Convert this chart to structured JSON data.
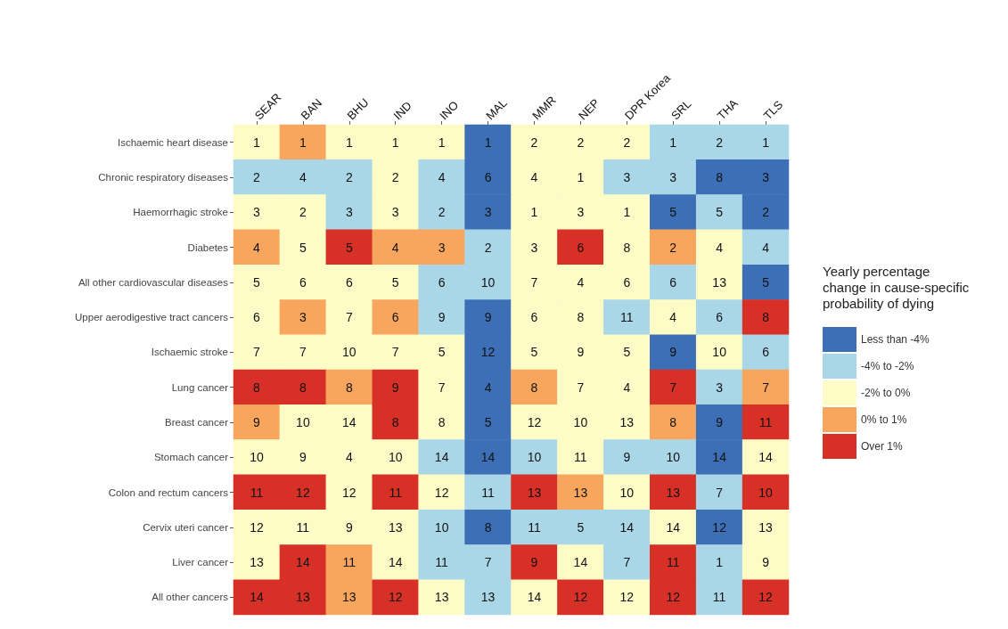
{
  "chart_data": {
    "type": "heatmap",
    "legend_title": "Yearly percentage\nchange in cause-specific\nprobability of dying",
    "legend": "right",
    "categories": [
      "SEAR",
      "BAN",
      "BHU",
      "IND",
      "INO",
      "MAL",
      "MMR",
      "NEP",
      "DPR Korea",
      "SRL",
      "THA",
      "TLS"
    ],
    "y_categories": [
      "Ischaemic heart disease",
      "Chronic respiratory diseases",
      "Haemorrhagic stroke",
      "Diabetes",
      "All other cardiovascular diseases",
      "Upper aerodigestive tract cancers",
      "Ischaemic stroke",
      "Lung cancer",
      "Breast cancer",
      "Stomach cancer",
      "Colon and rectum cancers",
      "Cervix uteri cancer",
      "Liver cancer",
      "All other cancers"
    ],
    "cells": [
      [
        1,
        1,
        1,
        1,
        1,
        1,
        2,
        2,
        2,
        1,
        2,
        1
      ],
      [
        2,
        4,
        2,
        2,
        4,
        6,
        4,
        1,
        3,
        3,
        8,
        3
      ],
      [
        3,
        2,
        3,
        3,
        2,
        3,
        1,
        3,
        1,
        5,
        5,
        2
      ],
      [
        4,
        5,
        5,
        4,
        3,
        2,
        3,
        6,
        8,
        2,
        4,
        4
      ],
      [
        5,
        6,
        6,
        5,
        6,
        10,
        7,
        4,
        6,
        6,
        13,
        5
      ],
      [
        6,
        3,
        7,
        6,
        9,
        9,
        6,
        8,
        11,
        4,
        6,
        8
      ],
      [
        7,
        7,
        10,
        7,
        5,
        12,
        5,
        9,
        5,
        9,
        10,
        6
      ],
      [
        8,
        8,
        8,
        9,
        7,
        4,
        8,
        7,
        4,
        7,
        3,
        7
      ],
      [
        9,
        10,
        14,
        8,
        8,
        5,
        12,
        10,
        13,
        8,
        9,
        11
      ],
      [
        10,
        9,
        4,
        10,
        14,
        14,
        10,
        11,
        9,
        10,
        14,
        14
      ],
      [
        11,
        12,
        12,
        11,
        12,
        11,
        13,
        13,
        10,
        13,
        7,
        10
      ],
      [
        12,
        11,
        9,
        13,
        10,
        8,
        11,
        5,
        14,
        14,
        12,
        13
      ],
      [
        13,
        14,
        11,
        14,
        11,
        7,
        9,
        14,
        7,
        11,
        1,
        9
      ],
      [
        14,
        13,
        13,
        12,
        13,
        13,
        14,
        12,
        12,
        12,
        11,
        12
      ]
    ],
    "data_labels": true,
    "colors": [
      [
        "#fdfcc6",
        "#f8a65d",
        "#fdfcc6",
        "#fdfcc6",
        "#fdfcc6",
        "#3c6fb6",
        "#fdfcc6",
        "#fdfcc6",
        "#fdfcc6",
        "#a9d7e8",
        "#a9d7e8",
        "#a9d7e8"
      ],
      [
        "#a9d7e8",
        "#a9d7e8",
        "#a9d7e8",
        "#fdfcc6",
        "#a9d7e8",
        "#3c6fb6",
        "#fdfcc6",
        "#fdfcc6",
        "#a9d7e8",
        "#a9d7e8",
        "#3c6fb6",
        "#3c6fb6"
      ],
      [
        "#fdfcc6",
        "#fdfcc6",
        "#a9d7e8",
        "#fdfcc6",
        "#a9d7e8",
        "#3c6fb6",
        "#fdfcc6",
        "#fdfcc6",
        "#fdfcc6",
        "#3c6fb6",
        "#a9d7e8",
        "#3c6fb6"
      ],
      [
        "#f8a65d",
        "#fdfcc6",
        "#d73027",
        "#f8a65d",
        "#f8a65d",
        "#a9d7e8",
        "#fdfcc6",
        "#d73027",
        "#fdfcc6",
        "#f8a65d",
        "#fdfcc6",
        "#a9d7e8"
      ],
      [
        "#fdfcc6",
        "#fdfcc6",
        "#fdfcc6",
        "#fdfcc6",
        "#a9d7e8",
        "#a9d7e8",
        "#fdfcc6",
        "#fdfcc6",
        "#fdfcc6",
        "#a9d7e8",
        "#fdfcc6",
        "#3c6fb6"
      ],
      [
        "#fdfcc6",
        "#f8a65d",
        "#fdfcc6",
        "#f8a65d",
        "#a9d7e8",
        "#3c6fb6",
        "#fdfcc6",
        "#fdfcc6",
        "#a9d7e8",
        "#fdfcc6",
        "#a9d7e8",
        "#d73027"
      ],
      [
        "#fdfcc6",
        "#fdfcc6",
        "#fdfcc6",
        "#fdfcc6",
        "#fdfcc6",
        "#3c6fb6",
        "#fdfcc6",
        "#fdfcc6",
        "#fdfcc6",
        "#3c6fb6",
        "#fdfcc6",
        "#a9d7e8"
      ],
      [
        "#d73027",
        "#d73027",
        "#f8a65d",
        "#d73027",
        "#fdfcc6",
        "#3c6fb6",
        "#f8a65d",
        "#fdfcc6",
        "#fdfcc6",
        "#d73027",
        "#a9d7e8",
        "#f8a65d"
      ],
      [
        "#f8a65d",
        "#fdfcc6",
        "#fdfcc6",
        "#d73027",
        "#fdfcc6",
        "#3c6fb6",
        "#fdfcc6",
        "#fdfcc6",
        "#fdfcc6",
        "#f8a65d",
        "#3c6fb6",
        "#d73027"
      ],
      [
        "#fdfcc6",
        "#fdfcc6",
        "#fdfcc6",
        "#fdfcc6",
        "#a9d7e8",
        "#3c6fb6",
        "#a9d7e8",
        "#fdfcc6",
        "#a9d7e8",
        "#a9d7e8",
        "#3c6fb6",
        "#fdfcc6"
      ],
      [
        "#d73027",
        "#d73027",
        "#fdfcc6",
        "#d73027",
        "#fdfcc6",
        "#a9d7e8",
        "#d73027",
        "#f8a65d",
        "#fdfcc6",
        "#d73027",
        "#a9d7e8",
        "#d73027"
      ],
      [
        "#fdfcc6",
        "#fdfcc6",
        "#fdfcc6",
        "#fdfcc6",
        "#a9d7e8",
        "#3c6fb6",
        "#a9d7e8",
        "#a9d7e8",
        "#a9d7e8",
        "#fdfcc6",
        "#3c6fb6",
        "#fdfcc6"
      ],
      [
        "#fdfcc6",
        "#d73027",
        "#f8a65d",
        "#fdfcc6",
        "#a9d7e8",
        "#a9d7e8",
        "#d73027",
        "#fdfcc6",
        "#a9d7e8",
        "#d73027",
        "#a9d7e8",
        "#fdfcc6"
      ],
      [
        "#d73027",
        "#d73027",
        "#f8a65d",
        "#d73027",
        "#fdfcc6",
        "#a9d7e8",
        "#fdfcc6",
        "#d73027",
        "#fdfcc6",
        "#d73027",
        "#a9d7e8",
        "#d73027"
      ]
    ],
    "series": [
      {
        "name": "Less than -4%",
        "color": "#3c6fb6",
        "values": [
          null,
          null,
          null,
          null,
          null,
          null,
          null,
          null,
          null,
          null,
          null,
          null
        ]
      },
      {
        "name": "-4% to -2%",
        "color": "#a9d7e8",
        "values": [
          null,
          null,
          null,
          null,
          null,
          null,
          null,
          null,
          null,
          null,
          null,
          null
        ]
      },
      {
        "name": "-2% to 0%",
        "color": "#fdfcc6",
        "values": [
          null,
          null,
          null,
          null,
          null,
          null,
          null,
          null,
          null,
          null,
          null,
          null
        ]
      },
      {
        "name": "0% to 1%",
        "color": "#f8a65d",
        "values": [
          null,
          null,
          null,
          null,
          null,
          null,
          null,
          null,
          null,
          null,
          null,
          null
        ]
      },
      {
        "name": "Over 1%",
        "color": "#d73027",
        "values": [
          null,
          null,
          null,
          null,
          null,
          null,
          null,
          null,
          null,
          null,
          null,
          null
        ]
      }
    ]
  }
}
